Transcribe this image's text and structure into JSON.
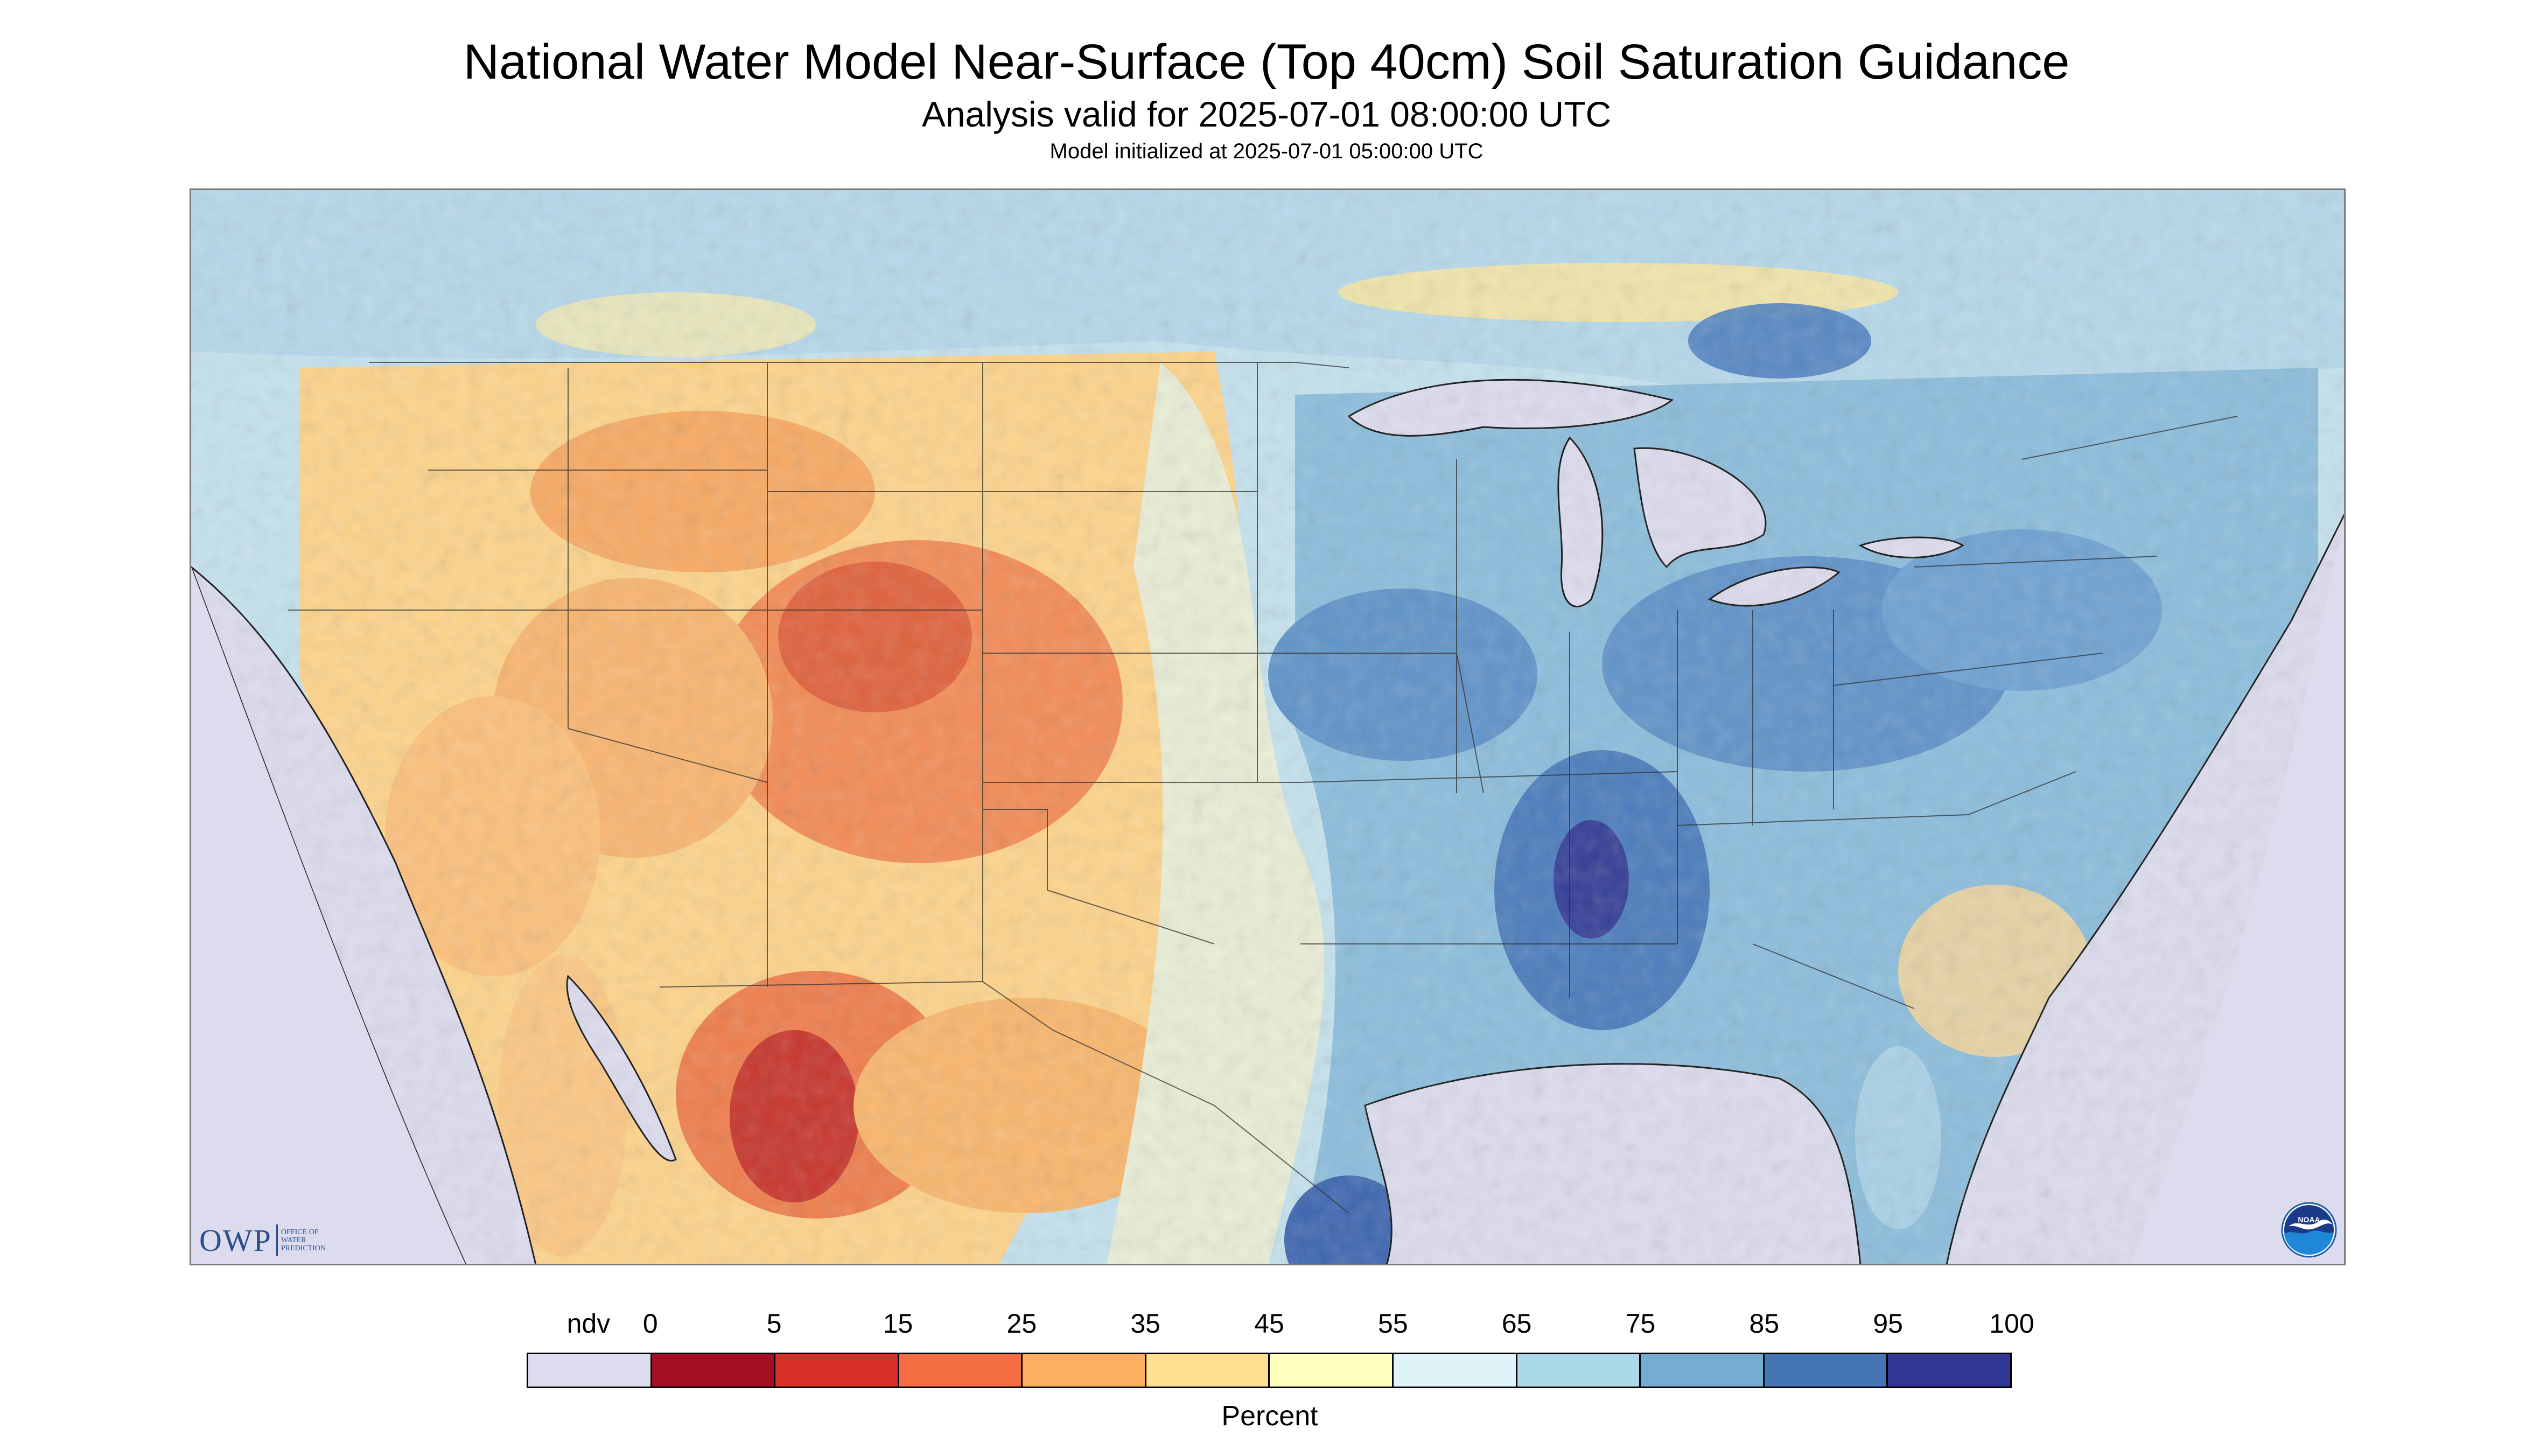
{
  "header": {
    "title": "National Water Model Near-Surface (Top 40cm) Soil Saturation Guidance",
    "subtitle": "Analysis valid for 2025-07-01 08:00:00 UTC",
    "init_line": "Model initialized at 2025-07-01 05:00:00 UTC"
  },
  "map": {
    "region": "CONUS",
    "background_nodata_color": "#dcdcee",
    "water_color": "#dcdcee",
    "boundary_color": "#333333",
    "coastline_color": "#111111"
  },
  "logos": {
    "owp_letters": "OWP",
    "owp_text": "OFFICE OF\nWATER\nPREDICTION",
    "noaa_text": "NOAA"
  },
  "legend": {
    "labels": [
      "ndv",
      "0",
      "5",
      "15",
      "25",
      "35",
      "45",
      "55",
      "65",
      "75",
      "85",
      "95",
      "100"
    ],
    "colors": [
      "#dcdcee",
      "#a50f26",
      "#d73027",
      "#f46d43",
      "#fdae61",
      "#fee090",
      "#ffffbf",
      "#e0f3f8",
      "#abd9e9",
      "#74add1",
      "#4575b4",
      "#313695"
    ],
    "unit": "Percent"
  }
}
